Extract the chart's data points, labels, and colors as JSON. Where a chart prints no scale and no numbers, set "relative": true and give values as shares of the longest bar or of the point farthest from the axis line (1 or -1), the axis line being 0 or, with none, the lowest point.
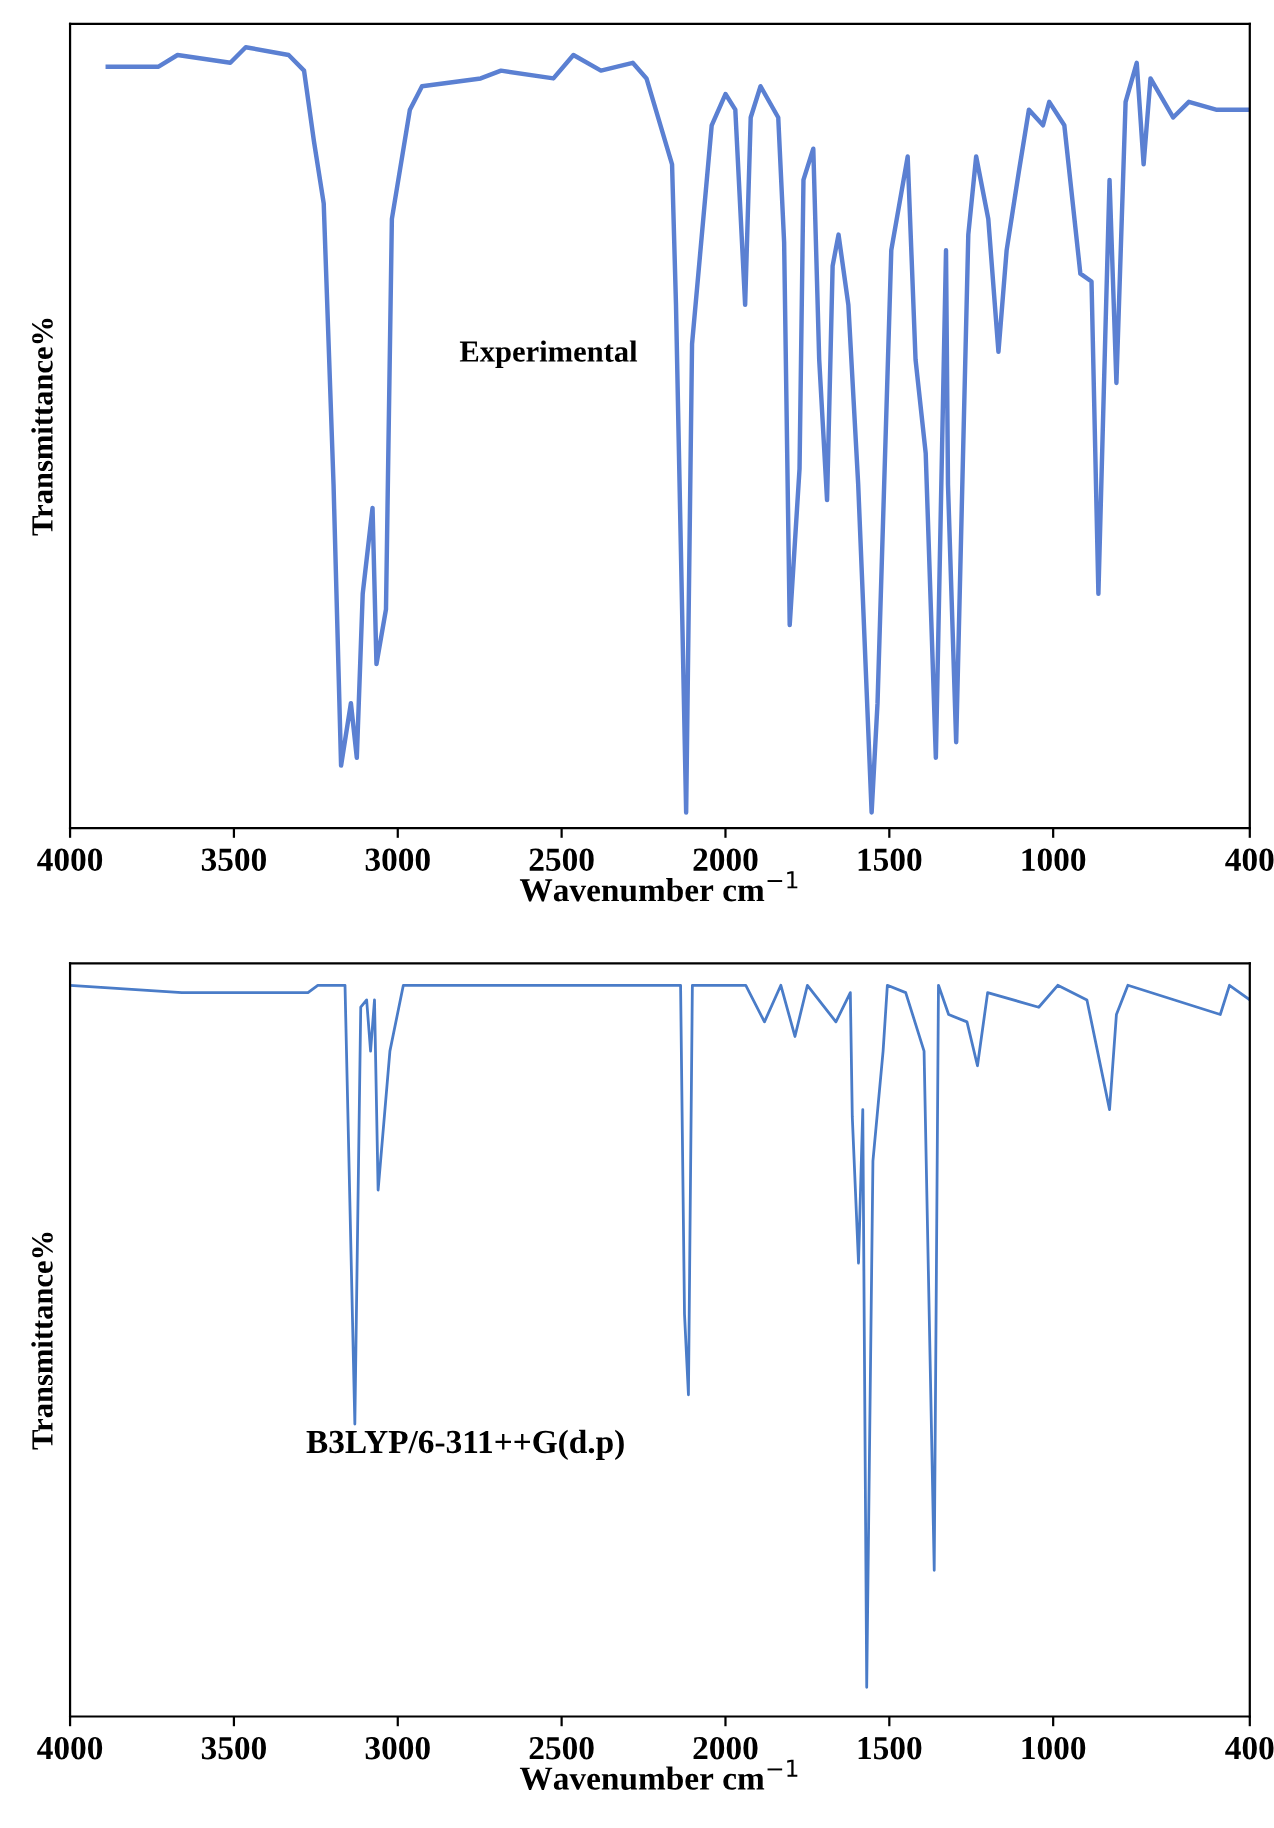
{
  "chart_data": [
    {
      "type": "line",
      "relative": true,
      "xlabel": "Wavenumber cm$^{−1}$",
      "ylabel": "Transmittance%",
      "annotations": [
        "Experimental"
      ],
      "xlim": [
        4000,
        400
      ],
      "xticks": [
        4000,
        3500,
        3000,
        2500,
        2000,
        1500,
        1000,
        400
      ],
      "color": "#5b80d2",
      "x": [
        3885,
        3730,
        3672,
        3511,
        3464,
        3333,
        3286,
        3256,
        3226,
        3196,
        3173,
        3143,
        3125,
        3107,
        3077,
        3065,
        3036,
        3018,
        2963,
        2926,
        2747,
        2685,
        2525,
        2464,
        2380,
        2283,
        2241,
        2163,
        2151,
        2120,
        2102,
        2042,
        2000,
        1970,
        1940,
        1923,
        1893,
        1839,
        1821,
        1804,
        1774,
        1762,
        1732,
        1714,
        1690,
        1673,
        1655,
        1625,
        1595,
        1554,
        1536,
        1494,
        1444,
        1420,
        1389,
        1358,
        1327,
        1321,
        1296,
        1259,
        1235,
        1198,
        1167,
        1142,
        1105,
        1074,
        1031,
        1012,
        966,
        917,
        883,
        862,
        841,
        828,
        807,
        779,
        745,
        724,
        703,
        634,
        586,
        503,
        469,
        400
      ],
      "values": [
        0.975,
        0.975,
        0.99,
        0.98,
        1.0,
        0.99,
        0.97,
        0.88,
        0.8,
        0.44,
        0.08,
        0.16,
        0.09,
        0.3,
        0.41,
        0.21,
        0.28,
        0.78,
        0.92,
        0.95,
        0.96,
        0.97,
        0.96,
        0.99,
        0.97,
        0.98,
        0.96,
        0.85,
        0.67,
        0.02,
        0.62,
        0.9,
        0.94,
        0.92,
        0.67,
        0.91,
        0.95,
        0.91,
        0.75,
        0.26,
        0.46,
        0.83,
        0.87,
        0.6,
        0.42,
        0.72,
        0.76,
        0.67,
        0.44,
        0.02,
        0.16,
        0.74,
        0.86,
        0.6,
        0.48,
        0.09,
        0.74,
        0.44,
        0.11,
        0.76,
        0.86,
        0.78,
        0.61,
        0.74,
        0.84,
        0.92,
        0.9,
        0.93,
        0.9,
        0.71,
        0.7,
        0.3,
        0.63,
        0.83,
        0.57,
        0.93,
        0.98,
        0.85,
        0.96,
        0.91,
        0.93,
        0.92,
        0.92,
        0.92
      ]
    },
    {
      "type": "line",
      "relative": true,
      "xlabel": "Wavenumber cm$^{−1}$",
      "ylabel": "Transmittance%",
      "annotations": [
        "B3LYP/6-311++G(d.p)"
      ],
      "xlim": [
        4000,
        400
      ],
      "xticks": [
        4000,
        3500,
        3000,
        2500,
        2000,
        1500,
        1000,
        400
      ],
      "color": "#4a7cc8",
      "x": [
        4000,
        3659,
        3274,
        3244,
        3161,
        3131,
        3113,
        3095,
        3083,
        3071,
        3060,
        3024,
        2983,
        2137,
        2125,
        2113,
        2101,
        1938,
        1881,
        1831,
        1788,
        1750,
        1663,
        1619,
        1613,
        1594,
        1581,
        1569,
        1550,
        1519,
        1506,
        1450,
        1394,
        1363,
        1350,
        1319,
        1263,
        1231,
        1200,
        1044,
        986,
        897,
        828,
        807,
        772,
        490,
        462,
        400
      ],
      "values": [
        1.0,
        0.99,
        0.99,
        1.0,
        1.0,
        0.4,
        0.97,
        0.98,
        0.91,
        0.98,
        0.72,
        0.91,
        1.0,
        1.0,
        0.55,
        0.44,
        1.0,
        1.0,
        0.95,
        1.0,
        0.93,
        1.0,
        0.95,
        0.99,
        0.82,
        0.62,
        0.83,
        0.04,
        0.76,
        0.91,
        1.0,
        0.99,
        0.91,
        0.2,
        1.0,
        0.96,
        0.95,
        0.89,
        0.99,
        0.97,
        1.0,
        0.98,
        0.83,
        0.96,
        1.0,
        0.96,
        1.0,
        0.98
      ]
    }
  ]
}
